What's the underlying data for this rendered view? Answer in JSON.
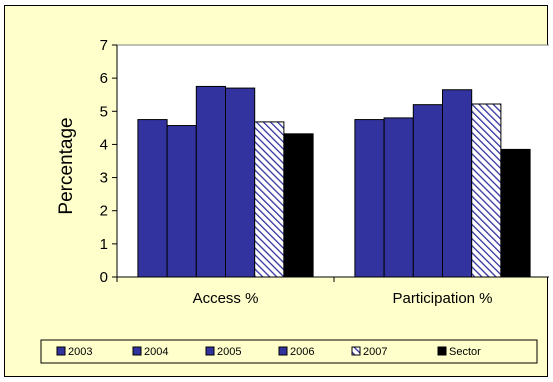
{
  "chart_data": {
    "type": "bar",
    "title": "",
    "xlabel": "",
    "ylabel": "Percentage",
    "ylim": [
      0,
      7
    ],
    "yticks": [
      0,
      1,
      2,
      3,
      4,
      5,
      6,
      7
    ],
    "grid": false,
    "legend_position": "bottom",
    "categories": [
      "Access %",
      "Participation %"
    ],
    "series": [
      {
        "name": "2003",
        "values": [
          4.75,
          4.75
        ],
        "color": "#3333a0",
        "pattern": "solid"
      },
      {
        "name": "2004",
        "values": [
          4.57,
          4.8
        ],
        "color": "#3333a0",
        "pattern": "solid"
      },
      {
        "name": "2005",
        "values": [
          5.75,
          5.2
        ],
        "color": "#3333a0",
        "pattern": "solid"
      },
      {
        "name": "2006",
        "values": [
          5.7,
          5.65
        ],
        "color": "#3333a0",
        "pattern": "solid"
      },
      {
        "name": "2007",
        "values": [
          4.68,
          5.22
        ],
        "color": "#3333a0",
        "pattern": "hatched"
      },
      {
        "name": "Sector",
        "values": [
          4.32,
          3.85
        ],
        "color": "#000000",
        "pattern": "solid"
      }
    ]
  },
  "colors": {
    "background": "#ffffcc",
    "plot_area": "#ffffff",
    "bar_blue": "#3333a0",
    "sector": "#000000",
    "hatch_fg": "#3333a0",
    "hatch_bg": "#ffffff"
  }
}
